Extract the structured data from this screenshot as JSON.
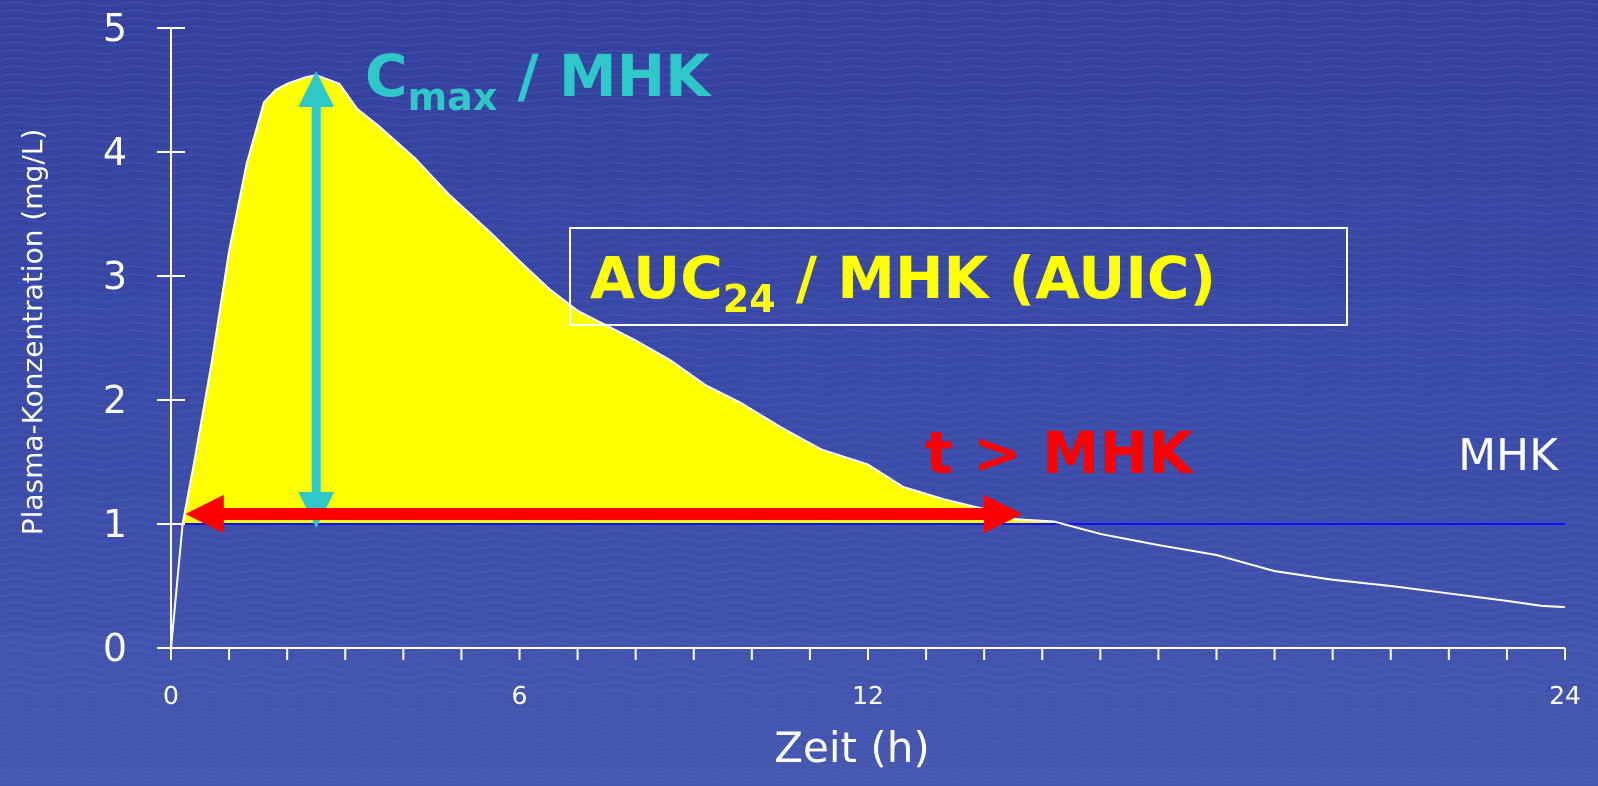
{
  "chart_data": {
    "type": "area",
    "xlabel": "Zeit (h)",
    "ylabel": "Plasma-Konzentration (mg/L)",
    "xlim": [
      0,
      24
    ],
    "ylim": [
      0,
      5
    ],
    "x_ticks": [
      0,
      6,
      12,
      24
    ],
    "y_ticks": [
      0,
      1,
      2,
      3,
      4,
      5
    ],
    "x_minor_tick_step": 1,
    "grid": false,
    "mic_threshold": 1,
    "mic_label": "MHK",
    "series": [
      {
        "x": [
          0,
          0.2,
          0.4,
          0.7,
          1.0,
          1.3,
          1.6,
          1.8,
          2.0,
          2.3,
          2.5,
          2.9,
          3.2,
          3.6,
          4.2,
          4.8,
          5.5,
          6.0,
          6.5,
          7.0,
          7.5,
          8.0,
          8.6,
          9.2,
          9.8,
          10.5,
          11.2,
          12.0,
          12.6,
          13.3,
          14.0,
          14.5,
          15.2,
          16.0,
          17.0,
          18.0,
          19.0,
          20.0,
          21.0,
          22.0,
          23.0,
          23.6,
          24.0
        ],
        "y": [
          0,
          1.0,
          1.5,
          2.3,
          3.2,
          3.9,
          4.4,
          4.5,
          4.55,
          4.6,
          4.62,
          4.55,
          4.35,
          4.2,
          3.95,
          3.65,
          3.35,
          3.12,
          2.9,
          2.72,
          2.6,
          2.48,
          2.32,
          2.12,
          1.98,
          1.78,
          1.6,
          1.48,
          1.3,
          1.2,
          1.12,
          1.04,
          1.02,
          0.92,
          0.83,
          0.75,
          0.62,
          0.55,
          0.5,
          0.44,
          0.38,
          0.34,
          0.33
        ]
      }
    ],
    "annotations": {
      "cmax_main": "C",
      "cmax_sub": "max",
      "cmax_tail": " / MHK",
      "auc_main": "AUC",
      "auc_sub": "24",
      "auc_tail": " / MHK (AUIC)",
      "tmic": "t > MHK"
    },
    "colors": {
      "auc_fill": "#ffff00",
      "cmax_arrow": "#2ec8c8",
      "tmic_arrow": "#ff0000",
      "mic_line": "#1010ff",
      "curve": "#ffffff",
      "background": "#2e3a9a"
    }
  }
}
